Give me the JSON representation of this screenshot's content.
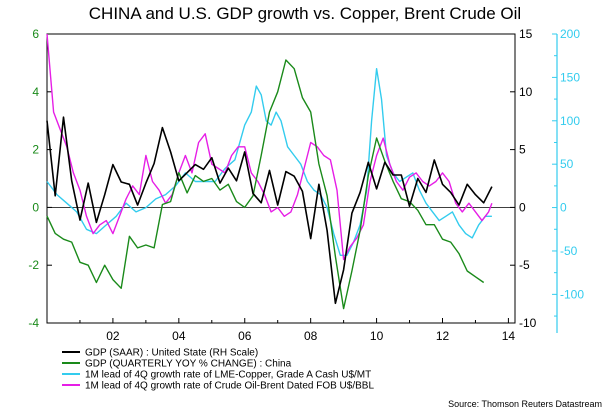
{
  "chart_data": {
    "type": "line",
    "title": "CHINA and U.S. GDP growth vs. Copper, Brent Crude Oil",
    "source": "Source: Thomson Reuters Datastream",
    "x_ticks": [
      "02",
      "04",
      "06",
      "08",
      "10",
      "12",
      "14"
    ],
    "x_tick_values": [
      2002,
      2004,
      2006,
      2008,
      2010,
      2012,
      2014
    ],
    "xlim": [
      2000.0,
      2014.2
    ],
    "axes": {
      "left": {
        "ylim": [
          -4,
          6
        ],
        "ticks": [
          "-4",
          "-2",
          "0",
          "2",
          "4",
          "6"
        ],
        "tick_values": [
          -4,
          -2,
          0,
          2,
          4,
          6
        ],
        "color": "#1a8a1a"
      },
      "mid": {
        "ylim": [
          -10,
          15
        ],
        "ticks": [
          "-10",
          "-5",
          "0",
          "5",
          "10",
          "15"
        ],
        "tick_values": [
          -10,
          -5,
          0,
          5,
          10,
          15
        ],
        "color": "#000000"
      },
      "right": {
        "ylim": [
          -133,
          200
        ],
        "ticks": [
          "-100",
          "-50",
          "0",
          "50",
          "100",
          "150",
          "200"
        ],
        "tick_values": [
          -100,
          -50,
          0,
          50,
          100,
          150,
          200
        ],
        "color": "#33ccee"
      }
    },
    "grid": false,
    "legend_position": "bottom-left",
    "series": [
      {
        "name": "GDP (SAAR) : United State (RH Scale)",
        "axis": "mid",
        "color": "#000000",
        "x": [
          2000.0,
          2000.25,
          2000.5,
          2000.75,
          2001.0,
          2001.25,
          2001.5,
          2001.75,
          2002.0,
          2002.25,
          2002.5,
          2002.75,
          2003.0,
          2003.25,
          2003.5,
          2003.75,
          2004.0,
          2004.25,
          2004.5,
          2004.75,
          2005.0,
          2005.25,
          2005.5,
          2005.75,
          2006.0,
          2006.25,
          2006.5,
          2006.75,
          2007.0,
          2007.25,
          2007.5,
          2007.75,
          2008.0,
          2008.25,
          2008.5,
          2008.75,
          2009.0,
          2009.25,
          2009.5,
          2009.75,
          2010.0,
          2010.25,
          2010.5,
          2010.75,
          2011.0,
          2011.25,
          2011.5,
          2011.75,
          2012.0,
          2012.25,
          2012.5,
          2012.75,
          2013.0,
          2013.25,
          2013.5
        ],
        "y": [
          7.5,
          1.0,
          7.8,
          2.3,
          -1.1,
          2.1,
          -1.3,
          1.1,
          3.7,
          2.2,
          2.0,
          0.2,
          2.1,
          3.8,
          6.9,
          4.8,
          2.3,
          3.0,
          3.7,
          3.3,
          4.3,
          2.1,
          3.4,
          2.3,
          4.8,
          1.2,
          0.4,
          3.2,
          0.2,
          3.1,
          2.7,
          1.4,
          -2.7,
          2.0,
          -2.0,
          -8.3,
          -5.4,
          -0.5,
          1.3,
          3.9,
          1.6,
          3.9,
          2.8,
          2.8,
          0.1,
          2.5,
          1.3,
          4.1,
          2.0,
          1.3,
          0.2,
          2.0,
          1.1,
          0.4,
          1.8
        ]
      },
      {
        "name": "GDP (QUARTERLY YOY % CHANGE) : China",
        "axis": "left",
        "color": "#1a8a1a",
        "x": [
          2000.0,
          2000.25,
          2000.5,
          2000.75,
          2001.0,
          2001.25,
          2001.5,
          2001.75,
          2002.0,
          2002.25,
          2002.5,
          2002.75,
          2003.0,
          2003.25,
          2003.5,
          2003.75,
          2004.0,
          2004.25,
          2004.5,
          2004.75,
          2005.0,
          2005.25,
          2005.5,
          2005.75,
          2006.0,
          2006.25,
          2006.5,
          2006.75,
          2007.0,
          2007.25,
          2007.5,
          2007.75,
          2008.0,
          2008.25,
          2008.5,
          2008.75,
          2009.0,
          2009.25,
          2009.5,
          2009.75,
          2010.0,
          2010.25,
          2010.5,
          2010.75,
          2011.0,
          2011.25,
          2011.5,
          2011.75,
          2012.0,
          2012.25,
          2012.5,
          2012.75,
          2013.0,
          2013.25
        ],
        "y": [
          -0.3,
          -0.9,
          -1.1,
          -1.2,
          -1.9,
          -2.0,
          -2.6,
          -2.0,
          -2.5,
          -2.8,
          -1.0,
          -1.4,
          -1.3,
          -1.4,
          0.1,
          0.2,
          1.2,
          0.5,
          1.1,
          0.9,
          1.0,
          0.6,
          0.8,
          0.2,
          0.0,
          0.4,
          1.8,
          3.3,
          4.0,
          5.1,
          4.8,
          3.8,
          3.3,
          1.5,
          0.4,
          -1.7,
          -3.5,
          -2.2,
          -0.8,
          1.1,
          2.4,
          1.6,
          0.9,
          0.3,
          0.2,
          -0.1,
          -0.6,
          -0.6,
          -1.1,
          -1.2,
          -1.6,
          -2.2,
          -2.4,
          -2.6
        ]
      },
      {
        "name": "1M lead of 4Q growth rate of LME-Copper, Grade A Cash U$/MT",
        "axis": "right",
        "color": "#33ccee",
        "x": [
          2000.0,
          2000.3,
          2000.6,
          2000.9,
          2001.2,
          2001.5,
          2001.8,
          2002.1,
          2002.4,
          2002.7,
          2003.0,
          2003.3,
          2003.6,
          2003.9,
          2004.2,
          2004.5,
          2004.8,
          2005.1,
          2005.4,
          2005.7,
          2006.0,
          2006.2,
          2006.35,
          2006.5,
          2006.65,
          2006.8,
          2006.95,
          2007.1,
          2007.3,
          2007.5,
          2007.7,
          2007.9,
          2008.1,
          2008.3,
          2008.5,
          2008.7,
          2008.9,
          2009.1,
          2009.3,
          2009.5,
          2009.7,
          2009.85,
          2010.0,
          2010.15,
          2010.3,
          2010.5,
          2010.7,
          2010.9,
          2011.1,
          2011.3,
          2011.5,
          2011.7,
          2011.9,
          2012.1,
          2012.3,
          2012.5,
          2012.7,
          2012.9,
          2013.1,
          2013.3,
          2013.5
        ],
        "y": [
          30,
          15,
          5,
          -5,
          -25,
          -30,
          -20,
          -10,
          5,
          -5,
          0,
          10,
          15,
          25,
          40,
          30,
          30,
          30,
          45,
          55,
          95,
          110,
          140,
          130,
          100,
          95,
          110,
          100,
          70,
          60,
          50,
          30,
          20,
          15,
          0,
          -30,
          -55,
          -55,
          -40,
          -20,
          20,
          100,
          160,
          125,
          60,
          40,
          30,
          35,
          40,
          20,
          5,
          -5,
          -15,
          -10,
          -5,
          -20,
          -30,
          -35,
          -20,
          -10,
          -10
        ]
      },
      {
        "name": "1M lead of 4Q growth rate of Crude Oil-Brent Dated FOB U$/BBL",
        "axis": "right",
        "color": "#e61ee6",
        "x": [
          2000.0,
          2000.2,
          2000.4,
          2000.6,
          2000.8,
          2001.0,
          2001.2,
          2001.4,
          2001.6,
          2001.8,
          2002.0,
          2002.2,
          2002.4,
          2002.6,
          2002.8,
          2003.0,
          2003.2,
          2003.4,
          2003.6,
          2003.8,
          2004.0,
          2004.2,
          2004.4,
          2004.6,
          2004.8,
          2005.0,
          2005.2,
          2005.4,
          2005.6,
          2005.8,
          2006.0,
          2006.2,
          2006.4,
          2006.6,
          2006.8,
          2007.0,
          2007.2,
          2007.4,
          2007.6,
          2007.8,
          2008.0,
          2008.2,
          2008.4,
          2008.6,
          2008.8,
          2009.0,
          2009.2,
          2009.4,
          2009.6,
          2009.8,
          2010.0,
          2010.2,
          2010.4,
          2010.6,
          2010.8,
          2011.0,
          2011.2,
          2011.4,
          2011.6,
          2011.8,
          2012.0,
          2012.2,
          2012.4,
          2012.6,
          2012.8,
          2013.0,
          2013.2,
          2013.4,
          2013.5
        ],
        "y": [
          200,
          110,
          90,
          70,
          40,
          20,
          -10,
          -30,
          -20,
          -15,
          -30,
          -10,
          10,
          25,
          15,
          60,
          30,
          20,
          5,
          15,
          40,
          60,
          40,
          75,
          85,
          50,
          45,
          40,
          60,
          70,
          70,
          40,
          30,
          15,
          -5,
          0,
          -10,
          -5,
          15,
          45,
          75,
          70,
          60,
          55,
          20,
          -60,
          -45,
          -35,
          -20,
          30,
          60,
          80,
          50,
          30,
          20,
          35,
          40,
          30,
          25,
          30,
          40,
          30,
          5,
          -5,
          5,
          -5,
          -15,
          -5,
          5
        ]
      }
    ]
  }
}
